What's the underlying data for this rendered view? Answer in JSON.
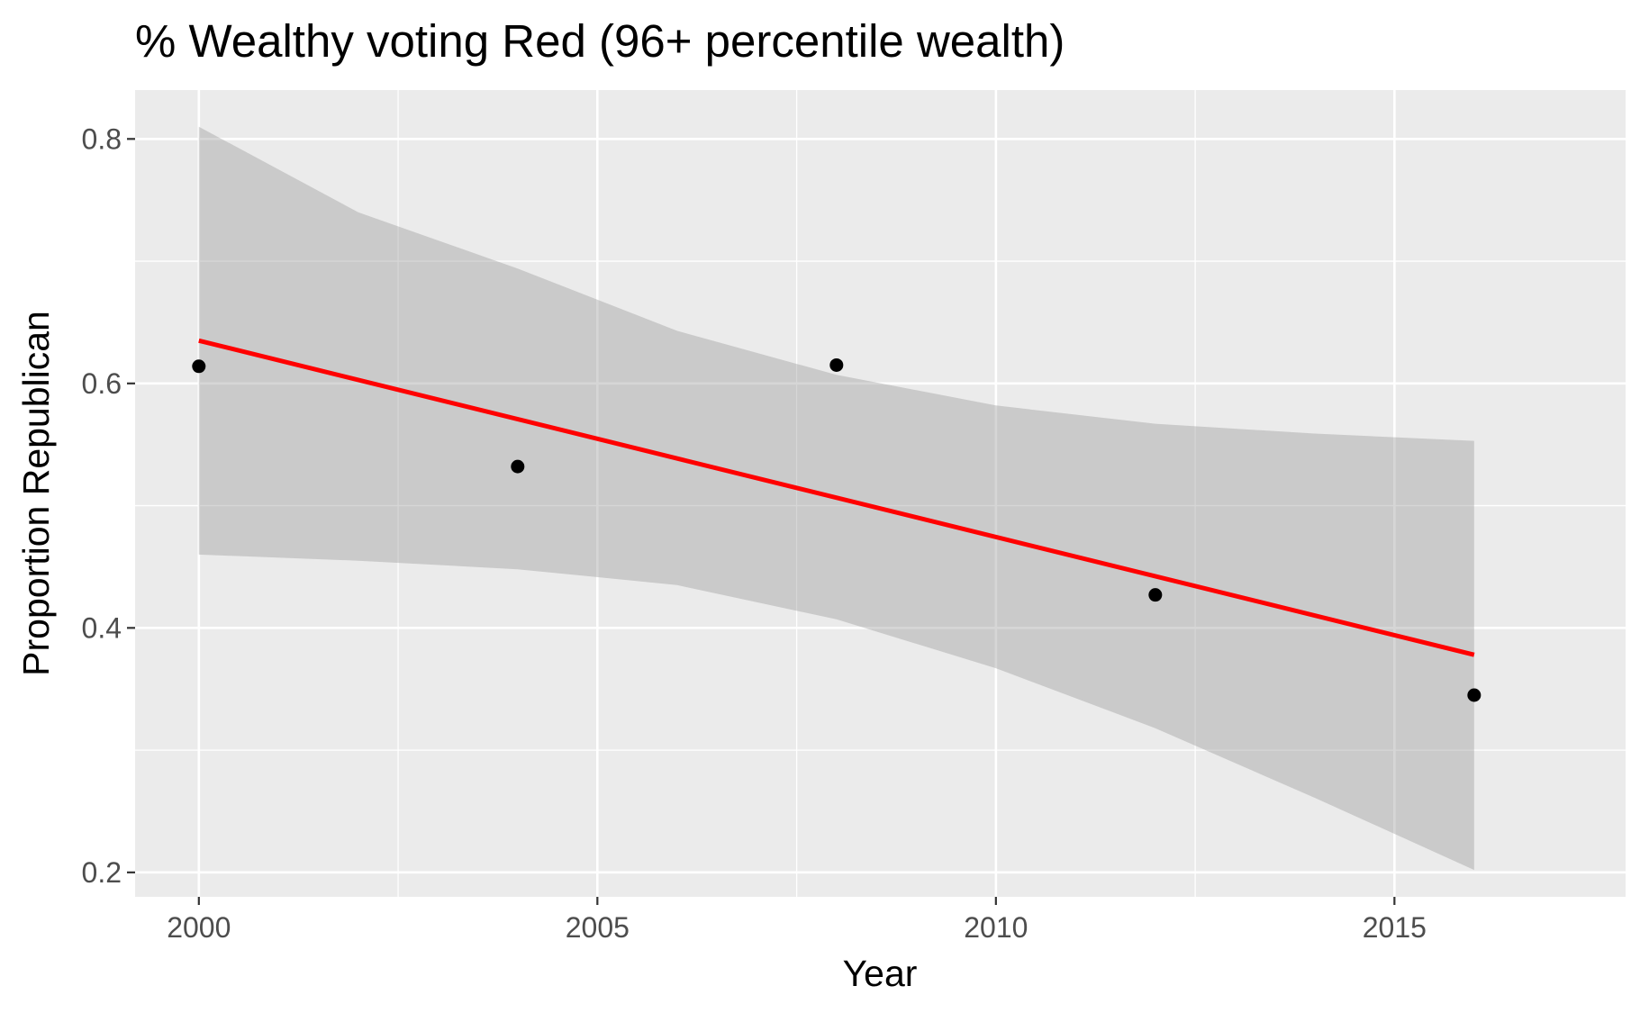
{
  "chart_data": {
    "type": "scatter",
    "title": "% Wealthy voting Red (96+ percentile wealth)",
    "xlabel": "Year",
    "ylabel": "Proportion Republican",
    "xlim": [
      1999.2,
      2017.9
    ],
    "ylim": [
      0.18,
      0.84
    ],
    "x_ticks": [
      2000,
      2005,
      2010,
      2015
    ],
    "x_tick_labels": [
      "2000",
      "2005",
      "2010",
      "2015"
    ],
    "y_ticks": [
      0.2,
      0.4,
      0.6,
      0.8
    ],
    "y_tick_labels": [
      "0.2",
      "0.4",
      "0.6",
      "0.8"
    ],
    "grid": true,
    "points": [
      {
        "x": 2000,
        "y": 0.614
      },
      {
        "x": 2004,
        "y": 0.532
      },
      {
        "x": 2008,
        "y": 0.615
      },
      {
        "x": 2012,
        "y": 0.427
      },
      {
        "x": 2016,
        "y": 0.345
      }
    ],
    "trend_line": {
      "type": "linear",
      "color": "#ff0000",
      "x": [
        2000,
        2016
      ],
      "y": [
        0.635,
        0.378
      ]
    },
    "confidence_band": {
      "color": "#999999",
      "x": [
        2000,
        2002,
        2004,
        2006,
        2008,
        2010,
        2012,
        2014,
        2016
      ],
      "lower": [
        0.46,
        0.455,
        0.448,
        0.435,
        0.407,
        0.367,
        0.318,
        0.261,
        0.202
      ],
      "upper": [
        0.81,
        0.74,
        0.694,
        0.643,
        0.607,
        0.582,
        0.567,
        0.559,
        0.553
      ]
    },
    "colors": {
      "panel_background": "#ebebeb",
      "grid": "#ffffff",
      "point": "#000000"
    }
  }
}
